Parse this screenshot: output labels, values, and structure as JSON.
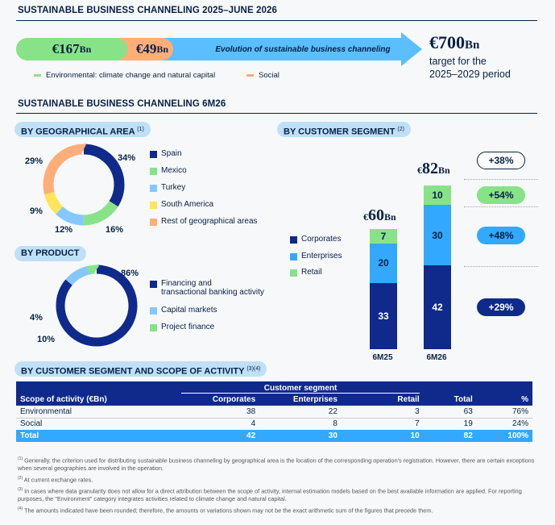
{
  "header": {
    "title": "SUSTAINABLE BUSINESS CHANNELING 2025–JUNE 2026",
    "env_amount": "€167",
    "env_unit": "Bn",
    "soc_amount": "€49",
    "soc_unit": "Bn",
    "arrow_text": "Evolution of sustainable business channeling",
    "target_amount": "€700",
    "target_unit": "Bn",
    "target_line1": "target for the",
    "target_line2": "2025–2029 period",
    "legend_env": "Environmental: climate change and natural capital",
    "legend_soc": "Social"
  },
  "section2": {
    "title": "SUSTAINABLE BUSINESS CHANNELING 6M26"
  },
  "geo": {
    "pill": "BY GEOGRAPHICAL AREA",
    "pill_note": "(1)",
    "legend": [
      "Spain",
      "Mexico",
      "Turkey",
      "South America",
      "Rest of geographical areas"
    ]
  },
  "product": {
    "pill": "BY PRODUCT",
    "legend_l1": "Financing and",
    "legend_l2": "transactional banking activity",
    "legend": [
      "Financing and transactional banking activity",
      "Capital markets",
      "Project finance"
    ]
  },
  "segment": {
    "pill": "BY CUSTOMER SEGMENT",
    "pill_note": "(2)",
    "legend": [
      "Corporates",
      "Enterprises",
      "Retail"
    ],
    "totals": [
      {
        "cur": "€",
        "num": "60",
        "unit": "Bn"
      },
      {
        "cur": "€",
        "num": "82",
        "unit": "Bn"
      }
    ],
    "variations": [
      "+38%",
      "+54%",
      "+48%",
      "+29%"
    ]
  },
  "scope": {
    "pill": "BY CUSTOMER SEGMENT AND SCOPE OF ACTIVITY",
    "pill_note": "(3)(4)",
    "group_header": "Customer segment",
    "columns": [
      "Scope of activity (€Bn)",
      "Corporates",
      "Enterprises",
      "Retail",
      "Total",
      "%"
    ],
    "rows": [
      [
        "Environmental",
        "38",
        "22",
        "3",
        "63",
        "76%"
      ],
      [
        "Social",
        "4",
        "8",
        "7",
        "19",
        "24%"
      ],
      [
        "Total",
        "42",
        "30",
        "10",
        "82",
        "100%"
      ]
    ]
  },
  "footnotes": {
    "n1_mark": "(1)",
    "n1": " Generally, the criterion used for distributing sustainable business channeling by geographical area is the location of the corresponding operation's registration. However, there are certain exceptions when several geographies are involved in the operation.",
    "n2_mark": "(2)",
    "n2": " At current exchange rates.",
    "n3_mark": "(3)",
    "n3": " In cases where data granularity does not allow for a direct attribution between the scope of activity, internal estimation models based on the best available information are applied. For reporting purposes, the \"Environment\" category integrates activities related to climate change and natural capital.",
    "n4_mark": "(4)",
    "n4": " The amounts indicated have been rounded; therefore, the amounts or variations shown may not be the exact arithmetic sum of the figures that precede them."
  },
  "colors": {
    "navy": "#072146",
    "dark_blue": "#0f2a8a",
    "green": "#88e388",
    "orange": "#ffae79",
    "light_blue": "#85c8ff",
    "mid_blue": "#33a8ff",
    "yellow": "#ffe45c",
    "pill_bg": "#bfe0f7",
    "arrow_blue": "#5bbeff"
  },
  "chart_data": [
    {
      "type": "pie",
      "title": "BY GEOGRAPHICAL AREA",
      "categories": [
        "Spain",
        "Mexico",
        "Turkey",
        "South America",
        "Rest of geographical areas"
      ],
      "values": [
        34,
        16,
        12,
        9,
        29
      ],
      "labels": [
        "34%",
        "16%",
        "12%",
        "9%",
        "29%"
      ],
      "colors": [
        "#0f2a8a",
        "#88e388",
        "#85c8ff",
        "#ffe45c",
        "#ffae79"
      ]
    },
    {
      "type": "pie",
      "title": "BY PRODUCT",
      "categories": [
        "Financing and transactional banking activity",
        "Capital markets",
        "Project finance"
      ],
      "values": [
        86,
        10,
        4
      ],
      "labels": [
        "86%",
        "10%",
        "4%"
      ],
      "colors": [
        "#0f2a8a",
        "#85c8ff",
        "#88e388"
      ]
    },
    {
      "type": "bar",
      "title": "BY CUSTOMER SEGMENT",
      "categories": [
        "6M25",
        "6M26"
      ],
      "series": [
        {
          "name": "Corporates",
          "values": [
            33,
            42
          ],
          "color": "#0f2a8a"
        },
        {
          "name": "Enterprises",
          "values": [
            20,
            30
          ],
          "color": "#33a8ff"
        },
        {
          "name": "Retail",
          "values": [
            7,
            10
          ],
          "color": "#88e388"
        }
      ],
      "totals": [
        60,
        82
      ]
    }
  ]
}
